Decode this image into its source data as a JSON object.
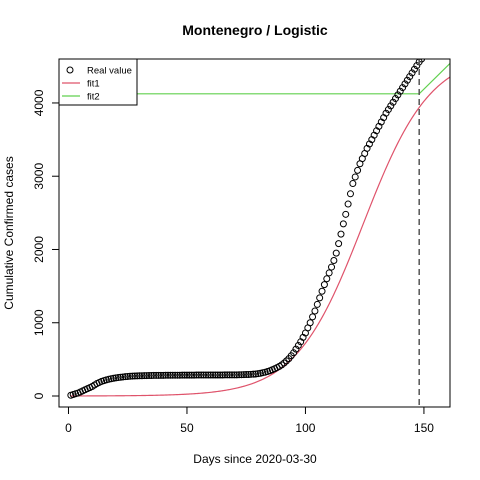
{
  "chart_data": {
    "type": "scatter",
    "title": "Montenegro / Logistic",
    "xlabel": "Days since 2020-03-30",
    "ylabel": "Cumulative Confirmed cases",
    "xlim": [
      -4,
      161
    ],
    "ylim": [
      -150,
      4600
    ],
    "x_ticks": [
      0,
      50,
      100,
      150
    ],
    "y_ticks": [
      0,
      1000,
      2000,
      3000,
      4000
    ],
    "grid": false,
    "legend_position": "top-left",
    "vline": {
      "x": 148,
      "style": "dashed",
      "color": "#555555"
    },
    "series": [
      {
        "name": "Real value",
        "kind": "points",
        "color": "#000000",
        "x": [
          1,
          2,
          3,
          4,
          5,
          6,
          7,
          8,
          9,
          10,
          11,
          12,
          13,
          14,
          15,
          16,
          17,
          18,
          19,
          20,
          21,
          22,
          23,
          24,
          25,
          26,
          27,
          28,
          29,
          30,
          31,
          32,
          33,
          34,
          35,
          36,
          37,
          38,
          39,
          40,
          41,
          42,
          43,
          44,
          45,
          46,
          47,
          48,
          49,
          50,
          51,
          52,
          53,
          54,
          55,
          56,
          57,
          58,
          59,
          60,
          61,
          62,
          63,
          64,
          65,
          66,
          67,
          68,
          69,
          70,
          71,
          72,
          73,
          74,
          75,
          76,
          77,
          78,
          79,
          80,
          81,
          82,
          83,
          84,
          85,
          86,
          87,
          88,
          89,
          90,
          91,
          92,
          93,
          94,
          95,
          96,
          97,
          98,
          99,
          100,
          101,
          102,
          103,
          104,
          105,
          106,
          107,
          108,
          109,
          110,
          111,
          112,
          113,
          114,
          115,
          116,
          117,
          118,
          119,
          120,
          121,
          122,
          123,
          124,
          125,
          126,
          127,
          128,
          129,
          130,
          131,
          132,
          133,
          134,
          135,
          136,
          137,
          138,
          139,
          140,
          141,
          142,
          143,
          144,
          145,
          146,
          147,
          148,
          149,
          150,
          151,
          152,
          153,
          154,
          155
        ],
        "y": [
          10,
          20,
          30,
          40,
          55,
          70,
          85,
          100,
          115,
          130,
          150,
          170,
          185,
          200,
          210,
          220,
          228,
          235,
          242,
          248,
          252,
          256,
          260,
          264,
          267,
          270,
          272,
          274,
          275,
          276,
          277,
          278,
          279,
          280,
          280,
          281,
          281,
          282,
          282,
          282,
          283,
          283,
          283,
          284,
          284,
          284,
          284,
          285,
          285,
          285,
          285,
          285,
          285,
          286,
          286,
          286,
          286,
          286,
          286,
          287,
          287,
          287,
          287,
          287,
          287,
          288,
          288,
          288,
          288,
          289,
          289,
          290,
          291,
          292,
          293,
          294,
          296,
          298,
          300,
          305,
          310,
          318,
          325,
          335,
          345,
          358,
          372,
          388,
          405,
          425,
          450,
          480,
          510,
          550,
          590,
          640,
          690,
          740,
          800,
          860,
          930,
          1000,
          1080,
          1160,
          1250,
          1340,
          1430,
          1520,
          1600,
          1680,
          1760,
          1850,
          1950,
          2080,
          2210,
          2350,
          2480,
          2620,
          2760,
          2900,
          2990,
          3080,
          3170,
          3240,
          3310,
          3380,
          3440,
          3500,
          3560,
          3620,
          3680,
          3740,
          3800,
          3860,
          3910,
          3960,
          4010,
          4060,
          4110,
          4160,
          4210,
          4260,
          4310,
          4360,
          4410,
          4460,
          4510,
          4560,
          4600,
          4640,
          4680,
          4720,
          4760,
          4800,
          4840
        ]
      },
      {
        "name": "fit1",
        "kind": "line",
        "color": "#df536b",
        "model": {
          "L": 4685,
          "k": 0.0702,
          "x0": 124.3
        },
        "x_range": [
          1,
          161
        ]
      },
      {
        "name": "fit2",
        "kind": "line",
        "color": "#61d04f",
        "x": [
          1,
          148,
          161
        ],
        "y": [
          4125,
          4125,
          4540
        ]
      }
    ]
  }
}
